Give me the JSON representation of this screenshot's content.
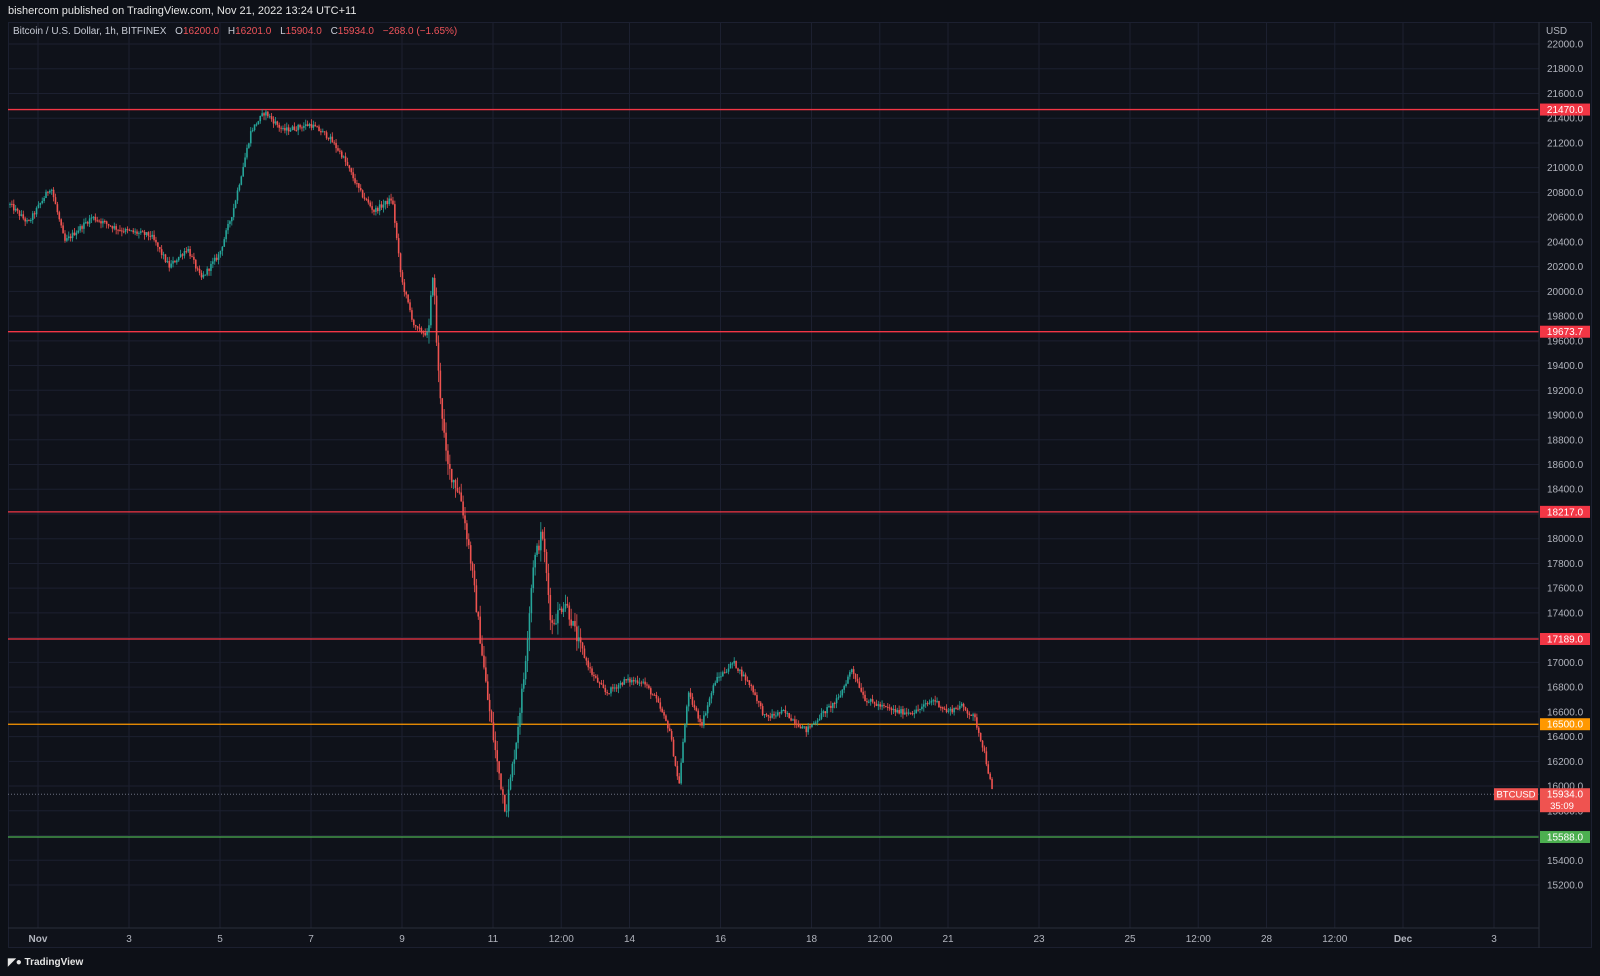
{
  "publisher": "bishercom published on TradingView.com, Nov 21, 2022 13:24 UTC+11",
  "legend": {
    "symbol": "Bitcoin / U.S. Dollar, 1h, BITFINEX",
    "open_label": "O",
    "open": "16200.0",
    "high_label": "H",
    "high": "16201.0",
    "low_label": "L",
    "low": "15904.0",
    "close_label": "C",
    "close": "15934.0",
    "change": "−268.0 (−1.65%)"
  },
  "brand": "TradingView",
  "colors": {
    "up": "#26a69a",
    "down": "#ef5350",
    "resistance": "#f23645",
    "orange": "#ff9800",
    "support": "#4caf50",
    "background": "#0f121a",
    "grid": "#1c2030"
  },
  "chart_data": {
    "type": "candlestick",
    "ylabel": "USD",
    "ylim": [
      15000,
      22000
    ],
    "y_ticks": [
      "22000.0",
      "21800.0",
      "21600.0",
      "21400.0",
      "21200.0",
      "21000.0",
      "20800.0",
      "20600.0",
      "20400.0",
      "20200.0",
      "20000.0",
      "19800.0",
      "19600.0",
      "19400.0",
      "19200.0",
      "19000.0",
      "18800.0",
      "18600.0",
      "18400.0",
      "18200.0",
      "18000.0",
      "17800.0",
      "17600.0",
      "17400.0",
      "17200.0",
      "17000.0",
      "16800.0",
      "16600.0",
      "16400.0",
      "16200.0",
      "16000.0",
      "15800.0",
      "15600.0",
      "15400.0",
      "15200.0"
    ],
    "x_ticks": [
      "Nov",
      "3",
      "5",
      "7",
      "9",
      "11",
      "12:00",
      "14",
      "16",
      "18",
      "12:00",
      "21",
      "23",
      "25",
      "12:00",
      "28",
      "12:00",
      "Dec",
      "3"
    ],
    "horizontal_levels": [
      {
        "value": 21470.0,
        "label": "21470.0",
        "color": "#f23645"
      },
      {
        "value": 19673.7,
        "label": "19673.7",
        "color": "#f23645"
      },
      {
        "value": 18217.0,
        "label": "18217.0",
        "color": "#f23645"
      },
      {
        "value": 17189.0,
        "label": "17189.0",
        "color": "#f23645"
      },
      {
        "value": 16500.0,
        "label": "16500.0",
        "color": "#ff9800"
      },
      {
        "value": 15588.0,
        "label": "15588.0",
        "color": "#4caf50"
      }
    ],
    "last_price": {
      "symbol": "BTCUSD",
      "value": 15934.0,
      "label": "15934.0",
      "countdown": "35:09"
    },
    "price_path": [
      [
        0,
        20700
      ],
      [
        0.4,
        20550
      ],
      [
        0.9,
        20850
      ],
      [
        1.2,
        20400
      ],
      [
        1.8,
        20600
      ],
      [
        2.4,
        20500
      ],
      [
        3.1,
        20450
      ],
      [
        3.5,
        20200
      ],
      [
        3.9,
        20350
      ],
      [
        4.2,
        20100
      ],
      [
        4.6,
        20300
      ],
      [
        4.9,
        20650
      ],
      [
        5.3,
        21300
      ],
      [
        5.6,
        21450
      ],
      [
        6.0,
        21300
      ],
      [
        6.6,
        21350
      ],
      [
        7.0,
        21250
      ],
      [
        7.3,
        21100
      ],
      [
        7.7,
        20800
      ],
      [
        8.0,
        20650
      ],
      [
        8.4,
        20750
      ],
      [
        8.6,
        20100
      ],
      [
        8.9,
        19700
      ],
      [
        9.2,
        19650
      ],
      [
        9.3,
        20200
      ],
      [
        9.4,
        19400
      ],
      [
        9.6,
        18600
      ],
      [
        9.9,
        18350
      ],
      [
        10.1,
        17900
      ],
      [
        10.3,
        17300
      ],
      [
        10.5,
        16700
      ],
      [
        10.7,
        16200
      ],
      [
        10.9,
        15800
      ],
      [
        11.1,
        16300
      ],
      [
        11.3,
        16900
      ],
      [
        11.5,
        17800
      ],
      [
        11.7,
        18050
      ],
      [
        11.9,
        17300
      ],
      [
        12.2,
        17500
      ],
      [
        12.5,
        17150
      ],
      [
        12.8,
        16900
      ],
      [
        13.1,
        16750
      ],
      [
        13.5,
        16850
      ],
      [
        13.9,
        16850
      ],
      [
        14.2,
        16700
      ],
      [
        14.5,
        16450
      ],
      [
        14.7,
        16000
      ],
      [
        14.9,
        16750
      ],
      [
        15.2,
        16500
      ],
      [
        15.5,
        16850
      ],
      [
        15.9,
        17000
      ],
      [
        16.3,
        16800
      ],
      [
        16.6,
        16550
      ],
      [
        17.0,
        16600
      ],
      [
        17.5,
        16450
      ],
      [
        17.9,
        16600
      ],
      [
        18.2,
        16700
      ],
      [
        18.5,
        16950
      ],
      [
        18.8,
        16700
      ],
      [
        19.1,
        16650
      ],
      [
        19.5,
        16600
      ],
      [
        19.9,
        16600
      ],
      [
        20.3,
        16700
      ],
      [
        20.6,
        16600
      ],
      [
        20.9,
        16650
      ],
      [
        21.2,
        16550
      ],
      [
        21.4,
        16300
      ],
      [
        21.6,
        15934
      ]
    ]
  }
}
